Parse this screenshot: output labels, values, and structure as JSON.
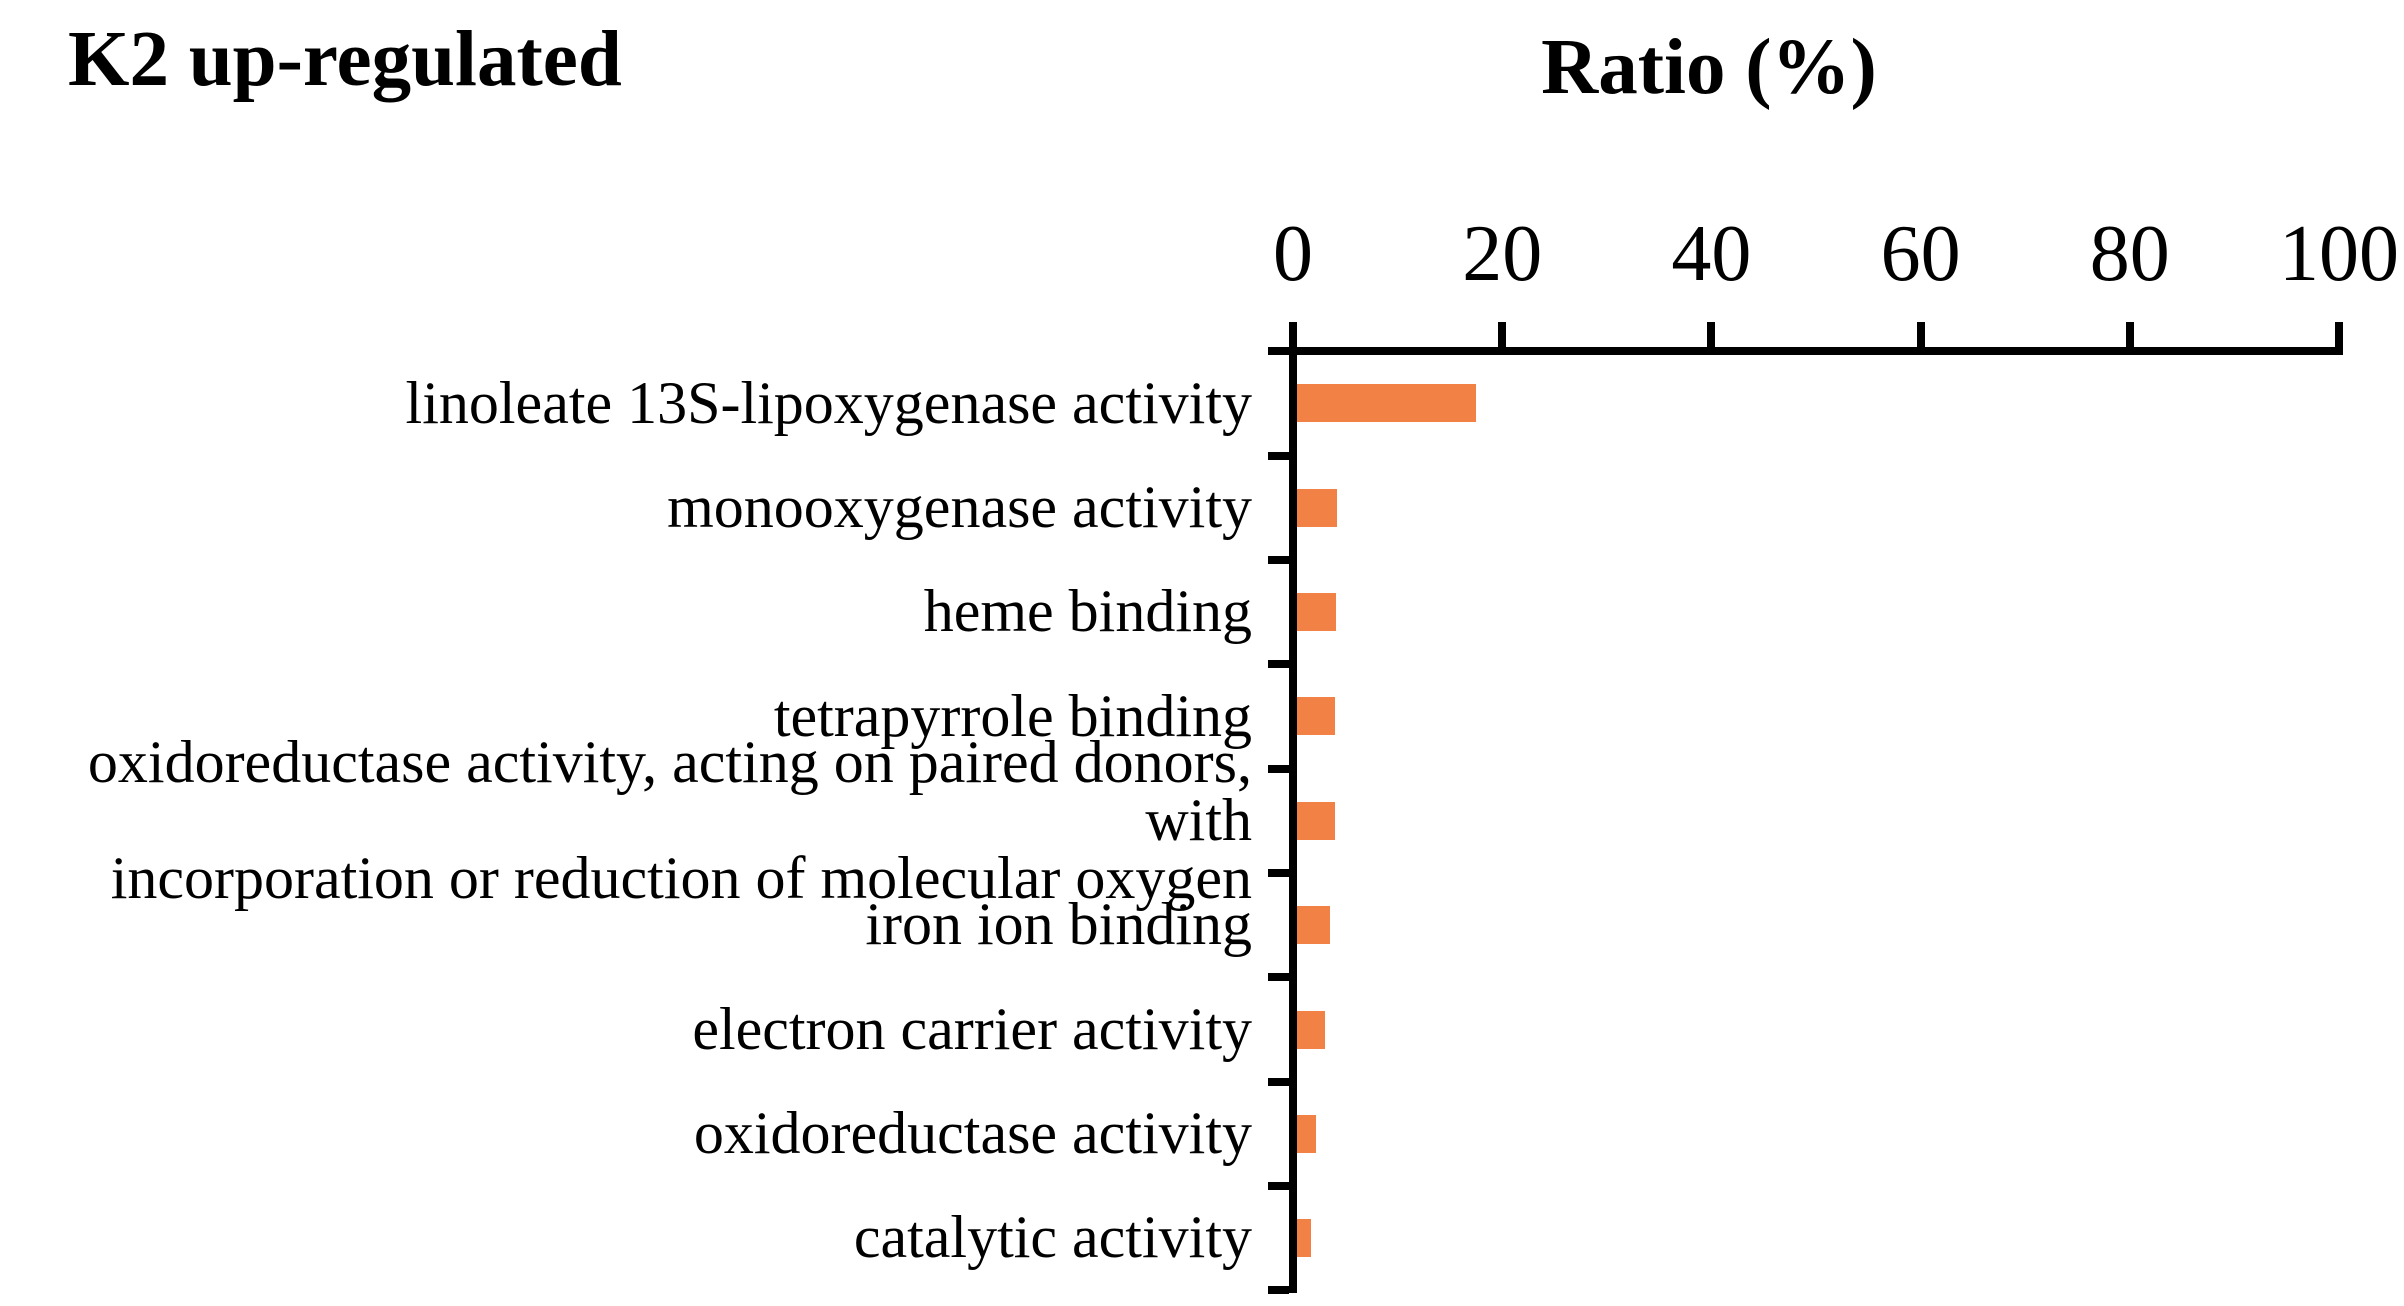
{
  "titles": {
    "left": "K2 up-regulated",
    "axis": "Ratio (%)"
  },
  "colors": {
    "bar": "#F28145",
    "axis": "#000000",
    "text": "#000000",
    "background": "#FFFFFF"
  },
  "chart_data": {
    "type": "bar",
    "orientation": "horizontal",
    "title": "K2 up-regulated",
    "xlabel": "Ratio (%)",
    "xlim": [
      0,
      100
    ],
    "x_ticks": [
      0,
      20,
      40,
      60,
      80,
      100
    ],
    "grid": false,
    "legend": false,
    "bar_color": "#F28145",
    "categories": [
      "linoleate 13S-lipoxygenase activity",
      "monooxygenase activity",
      "heme binding",
      "tetrapyrrole binding",
      "oxidoreductase activity, acting on paired donors, with incorporation or reduction of molecular oxygen",
      "iron ion binding",
      "electron carrier activity",
      "oxidoreductase activity",
      "catalytic activity"
    ],
    "category_display_lines": [
      [
        "linoleate 13S-lipoxygenase activity"
      ],
      [
        "monooxygenase activity"
      ],
      [
        "heme binding"
      ],
      [
        "tetrapyrrole binding"
      ],
      [
        "oxidoreductase activity, acting on paired donors, with",
        "incorporation or reduction of molecular oxygen"
      ],
      [
        "iron ion binding"
      ],
      [
        "electron carrier activity"
      ],
      [
        "oxidoreductase activity"
      ],
      [
        "catalytic activity"
      ]
    ],
    "values": [
      17.5,
      4.2,
      4.1,
      4.0,
      4.0,
      3.5,
      3.1,
      2.2,
      1.7
    ]
  }
}
